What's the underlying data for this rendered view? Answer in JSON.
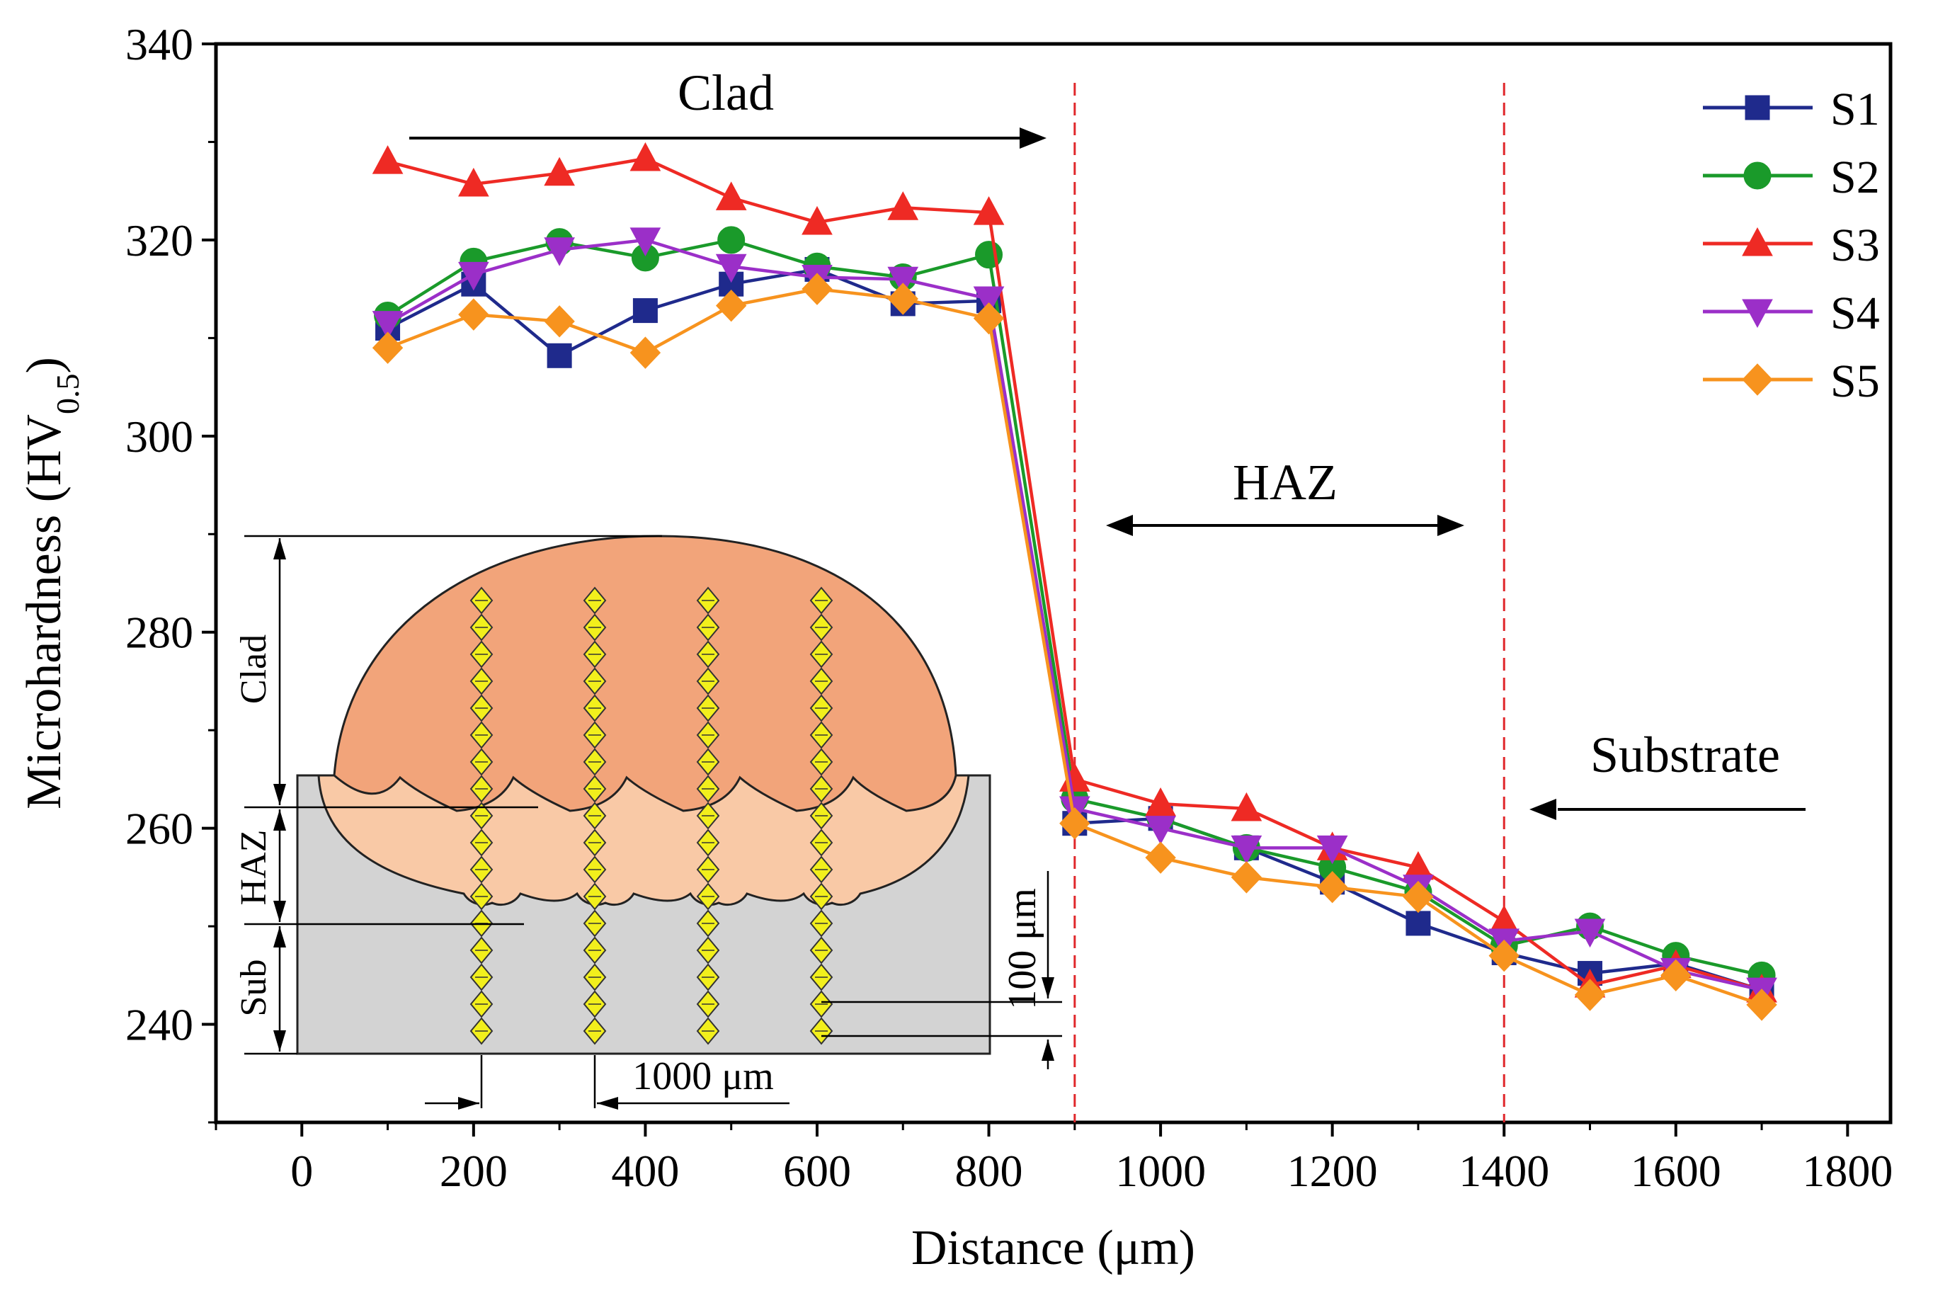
{
  "chart_data": {
    "type": "line",
    "xlabel": "Distance (μm)",
    "ylabel": "Microhardness (HV",
    "ylabel_sub": "0.5",
    "ylabel_close": ")",
    "xlim": [
      -100,
      1850
    ],
    "ylim": [
      230,
      340
    ],
    "xticks": [
      0,
      200,
      400,
      600,
      800,
      1000,
      1200,
      1400,
      1600,
      1800
    ],
    "yticks": [
      240,
      260,
      280,
      300,
      320,
      340
    ],
    "x": [
      100,
      200,
      300,
      400,
      500,
      600,
      700,
      800,
      900,
      1000,
      1100,
      1200,
      1300,
      1400,
      1500,
      1600,
      1700
    ],
    "series": [
      {
        "name": "S1",
        "color": "#1f2a8c",
        "marker": "square",
        "values": [
          311,
          315.5,
          308.2,
          312.8,
          315.5,
          317,
          313.5,
          313.8,
          260.5,
          261,
          258,
          254.5,
          250.3,
          247.3,
          245.2,
          246.2,
          243.5
        ]
      },
      {
        "name": "S2",
        "color": "#1a9a2a",
        "marker": "circle",
        "values": [
          312.3,
          317.8,
          319.8,
          318.2,
          320,
          317.3,
          316.2,
          318.5,
          263,
          261,
          258,
          256,
          253.5,
          248,
          250,
          247,
          245
        ]
      },
      {
        "name": "S3",
        "color": "#ee2a24",
        "marker": "triangle-up",
        "values": [
          328,
          325.7,
          326.8,
          328.3,
          324.3,
          321.8,
          323.3,
          322.8,
          265,
          262.5,
          262,
          258,
          256,
          250.5,
          244,
          246,
          243.5
        ]
      },
      {
        "name": "S4",
        "color": "#9b2fc8",
        "marker": "triangle-down",
        "values": [
          311.5,
          316.5,
          319,
          320,
          317.3,
          316.2,
          316,
          314,
          262,
          260,
          258,
          258,
          254,
          248.5,
          249.5,
          245.5,
          243.5
        ]
      },
      {
        "name": "S5",
        "color": "#f7931e",
        "marker": "diamond",
        "values": [
          309,
          312.4,
          311.7,
          308.5,
          313.3,
          315,
          314,
          312,
          260.5,
          257,
          255,
          254,
          253,
          247,
          243,
          245,
          242
        ]
      }
    ],
    "vlines": [
      900,
      1400
    ],
    "annotations": {
      "clad": "Clad",
      "haz": "HAZ",
      "substrate": "Substrate"
    },
    "legend_position": "top-right",
    "inset": {
      "label_clad": "Clad",
      "label_haz": "HAZ",
      "label_sub": "Sub",
      "spacing_horizontal": "1000 μm",
      "spacing_vertical": "100 μm",
      "colors": {
        "clad": "#f2a47a",
        "haz": "#f9c9a6",
        "substrate": "#d3d3d3",
        "indent": "#f2ef1c"
      }
    }
  }
}
